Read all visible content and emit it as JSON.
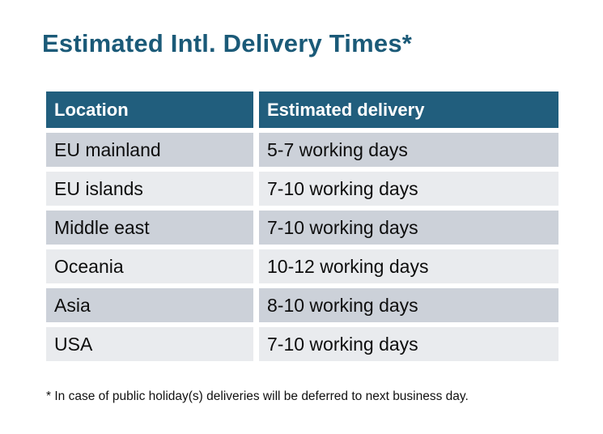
{
  "page": {
    "title": "Estimated Intl. Delivery Times*",
    "footnote": "* In case of public holiday(s) deliveries will be deferred to next business day."
  },
  "table": {
    "columns": [
      {
        "label": "Location"
      },
      {
        "label": "Estimated delivery"
      }
    ],
    "rows": [
      {
        "location": "EU mainland",
        "delivery": "5-7 working days"
      },
      {
        "location": "EU islands",
        "delivery": "7-10 working days"
      },
      {
        "location": "Middle east",
        "delivery": "7-10 working days"
      },
      {
        "location": "Oceania",
        "delivery": "10-12 working days"
      },
      {
        "location": "Asia",
        "delivery": "8-10 working days"
      },
      {
        "location": "USA",
        "delivery": "7-10 working days"
      }
    ]
  },
  "colors": {
    "header_bg": "#215e7d",
    "title_text": "#1b5a78",
    "row_dark": "#ccd1d9",
    "row_light": "#e9ebee",
    "header_text": "#ffffff",
    "body_text": "#0d0d0d"
  }
}
